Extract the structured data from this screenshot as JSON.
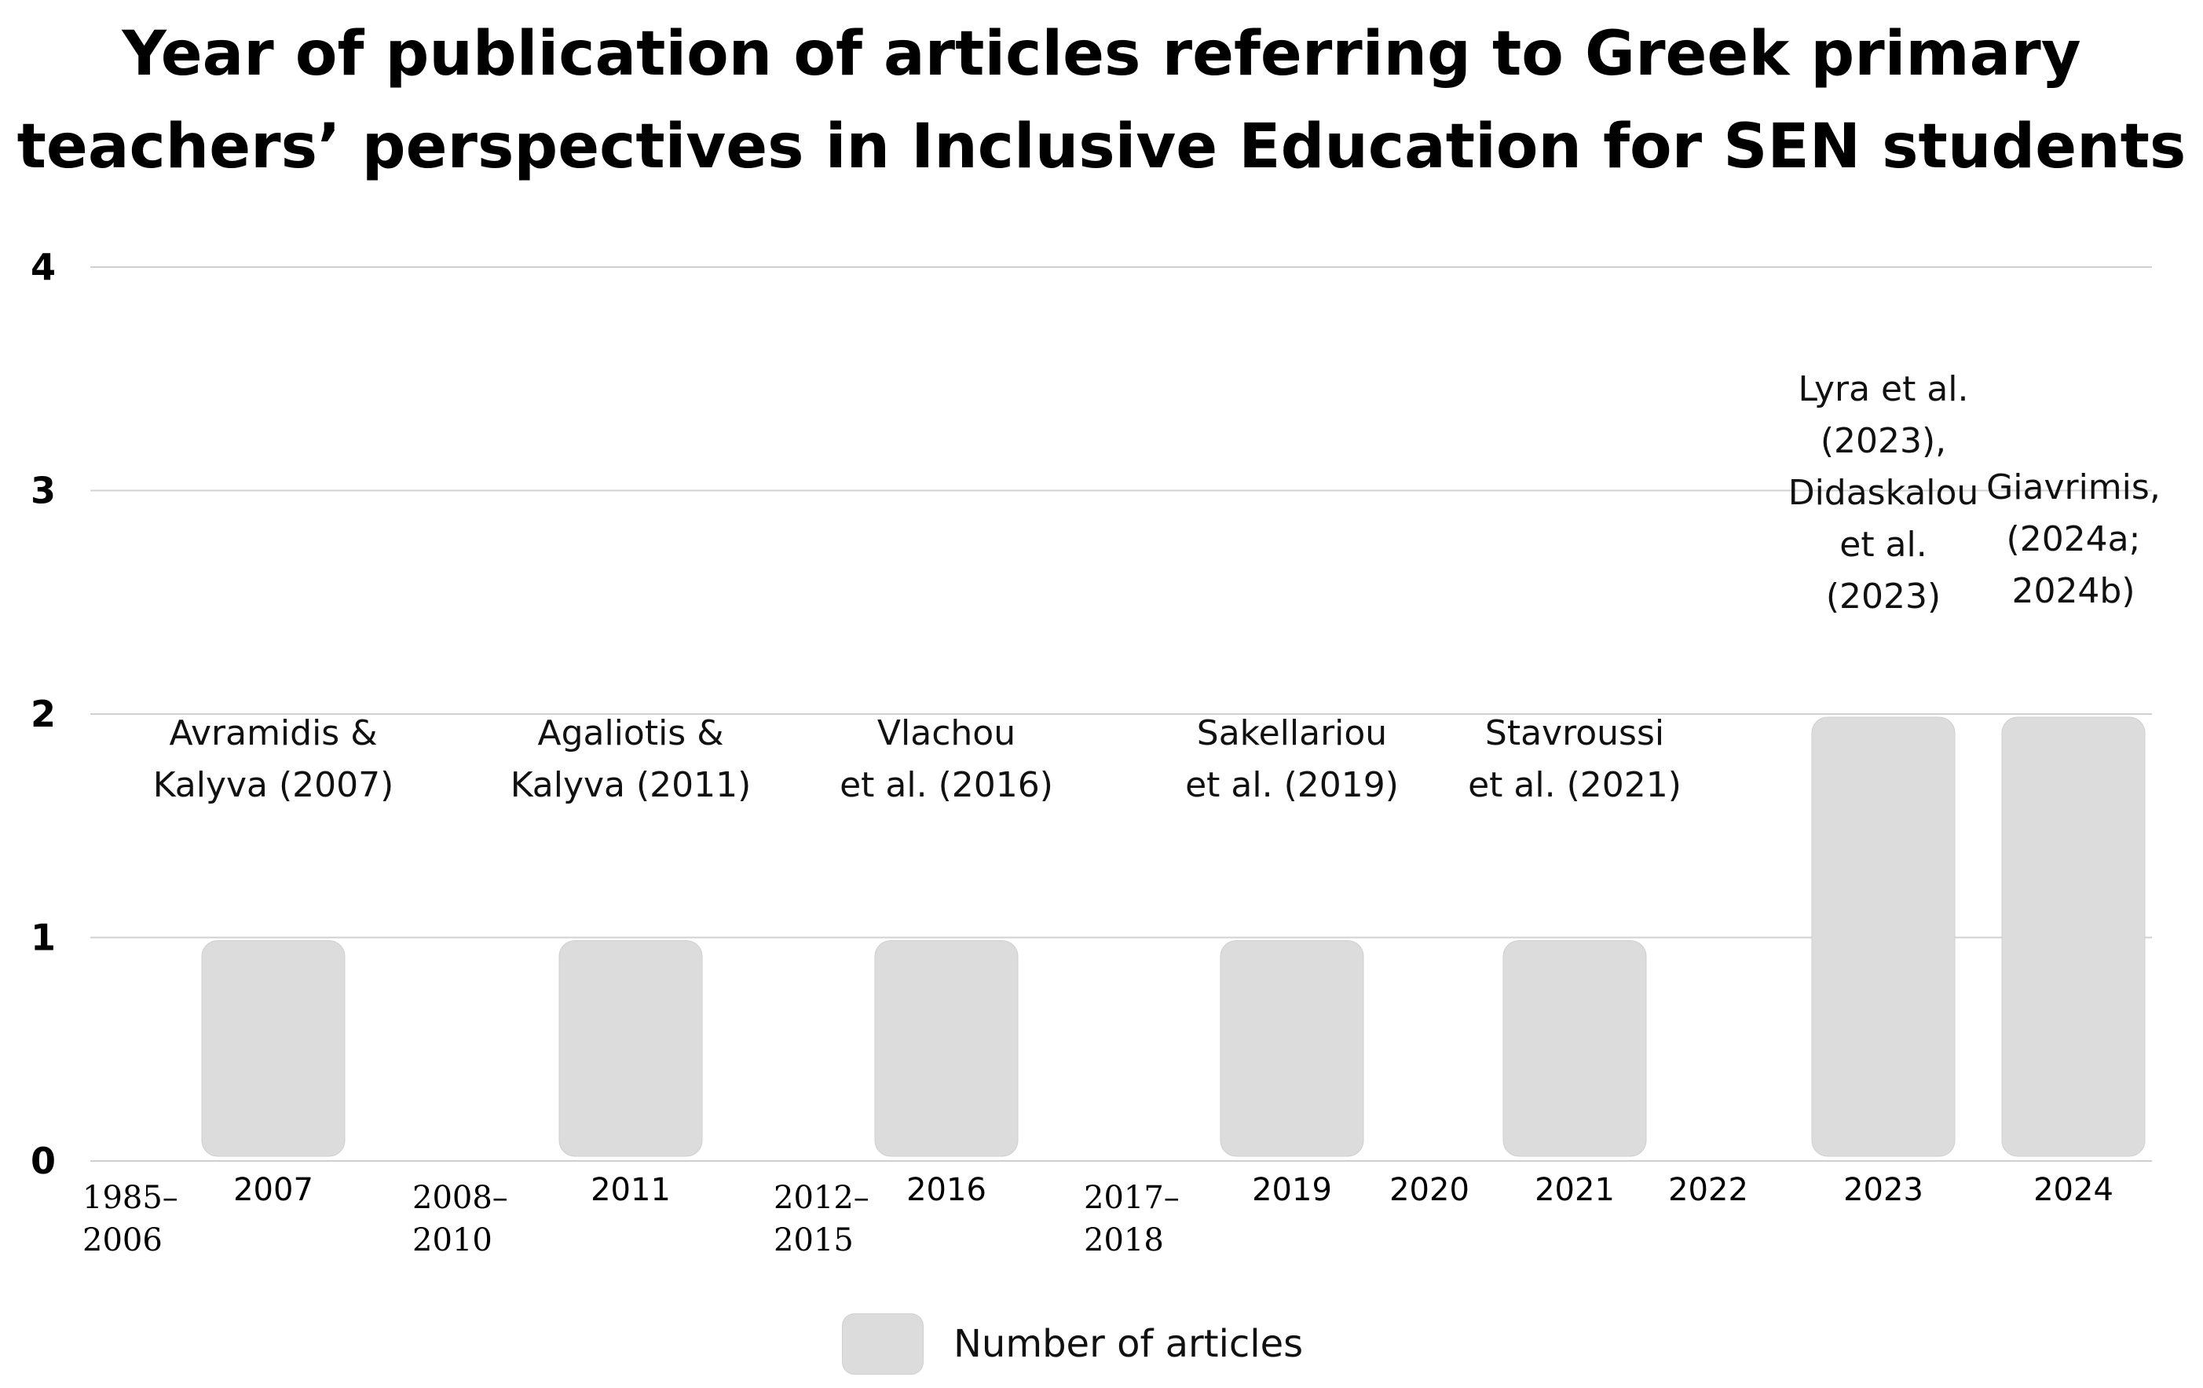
{
  "title_lines": [
    "Year of publication of articles referring to Greek primary",
    "teachers’ perspectives in Inclusive Education for SEN students"
  ],
  "chart_data": {
    "type": "bar",
    "title": "Year of publication of articles referring to Greek primary teachers’ perspectives in Inclusive Education for SEN students",
    "categories": [
      "1985–2006",
      "2007",
      "2008–2010",
      "2011",
      "2012–2015",
      "2016",
      "2017–2018",
      "2019",
      "2020",
      "2021",
      "2022",
      "2023",
      "2024"
    ],
    "series": [
      {
        "name": "Number of articles",
        "values": [
          0,
          1,
          0,
          1,
          0,
          1,
          0,
          1,
          0,
          1,
          0,
          2,
          2
        ],
        "color": "#dcdcdc"
      }
    ],
    "annotations": [
      {
        "category": "2007",
        "lines": [
          "Avramidis &",
          "Kalyva (2007)"
        ]
      },
      {
        "category": "2011",
        "lines": [
          "Agaliotis &",
          "Kalyva (2011)"
        ]
      },
      {
        "category": "2016",
        "lines": [
          "Vlachou",
          "et al. (2016)"
        ]
      },
      {
        "category": "2019",
        "lines": [
          "Sakellariou",
          "et al. (2019)"
        ]
      },
      {
        "category": "2021",
        "lines": [
          "Stavroussi",
          "et al. (2021)"
        ]
      },
      {
        "category": "2023",
        "lines": [
          "Lyra et al.",
          "(2023),",
          "Didaskalou",
          "et al.",
          "(2023)"
        ]
      },
      {
        "category": "2024",
        "lines": [
          "Giavrimis,",
          "(2024a;",
          "2024b)"
        ]
      }
    ],
    "yticks": [
      0,
      1,
      2,
      3,
      4
    ],
    "ylim": [
      0,
      4
    ],
    "grid": true,
    "legend": "bottom-center",
    "xlabel": "",
    "ylabel": ""
  },
  "legend": {
    "label": "Number of articles"
  }
}
